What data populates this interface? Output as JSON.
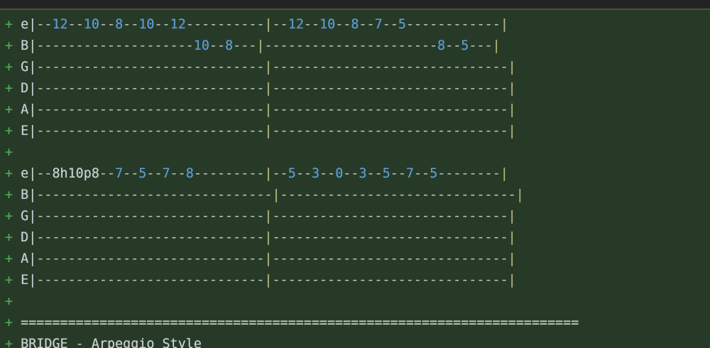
{
  "colors": {
    "background": "#263a27",
    "topbar": "#232323",
    "topbar_edge": "#4d4d4d",
    "add_marker_green": "#4da85a",
    "text_gray": "#c9ced2",
    "dash_gray_green": "#b4bfb4",
    "fret_number_blue": "#5d9bd3",
    "measure_bar_khaki": "#b3b27b",
    "divider_gray": "#c6cdc6"
  },
  "diff": {
    "lines": [
      "+ e|--12--10--8--10--12----------|--12--10--8--7--5------------|",
      "+ B|--------------------10--8---|----------------------8--5---|",
      "+ G|-----------------------------|------------------------------|",
      "+ D|-----------------------------|------------------------------|",
      "+ A|-----------------------------|------------------------------|",
      "+ E|-----------------------------|------------------------------|",
      "+",
      "+ e|--8h10p8--7--5--7--8---------|--5--3--0--3--5--7--5--------|",
      "+ B|------------------------------|------------------------------|",
      "+ G|-----------------------------|------------------------------|",
      "+ D|-----------------------------|------------------------------|",
      "+ A|-----------------------------|------------------------------|",
      "+ E|-----------------------------|------------------------------|",
      "+",
      "+ =======================================================================",
      "+ BRIDGE - Arpeggio Style"
    ],
    "section_label": "BRIDGE - Arpeggio Style"
  }
}
